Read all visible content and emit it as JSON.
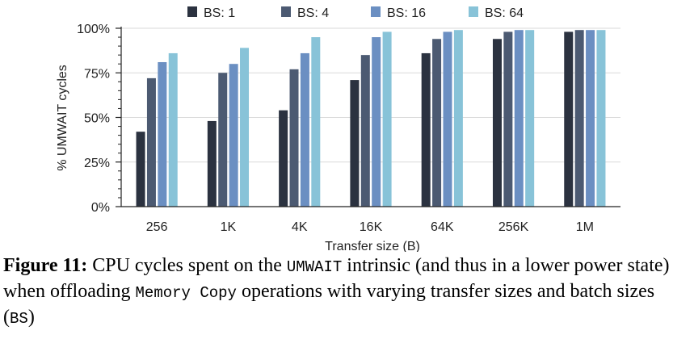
{
  "chart_data": {
    "type": "bar",
    "categories": [
      "256",
      "1K",
      "4K",
      "16K",
      "64K",
      "256K",
      "1M"
    ],
    "series": [
      {
        "name": "BS: 1",
        "color": "#2b3240",
        "values": [
          42,
          48,
          54,
          71,
          86,
          94,
          98
        ]
      },
      {
        "name": "BS: 4",
        "color": "#4c5a72",
        "values": [
          72,
          75,
          77,
          85,
          94,
          98,
          99
        ]
      },
      {
        "name": "BS: 16",
        "color": "#6b8fc2",
        "values": [
          81,
          80,
          86,
          95,
          98,
          99,
          99
        ]
      },
      {
        "name": "BS: 64",
        "color": "#88c3d8",
        "values": [
          86,
          89,
          95,
          98,
          99,
          99,
          99
        ]
      }
    ],
    "ylim": [
      0,
      100
    ],
    "yticks": [
      0,
      25,
      50,
      75,
      100
    ],
    "ytick_labels": [
      "0%",
      "25%",
      "50%",
      "75%",
      "100%"
    ],
    "xlabel": "Transfer size (B)",
    "ylabel": "% UMWAIT cycles",
    "legend_position": "top",
    "grid": "horizontal"
  },
  "caption": {
    "label": "Figure 11:",
    "part1": "CPU cycles spent on the",
    "code1": "UMWAIT",
    "part2": "intrinsic (and thus in a lower power state) when offloading",
    "code2": "Memory Copy",
    "part3": "operations with varying transfer sizes and batch sizes (",
    "code3": "BS",
    "part4": ")"
  }
}
